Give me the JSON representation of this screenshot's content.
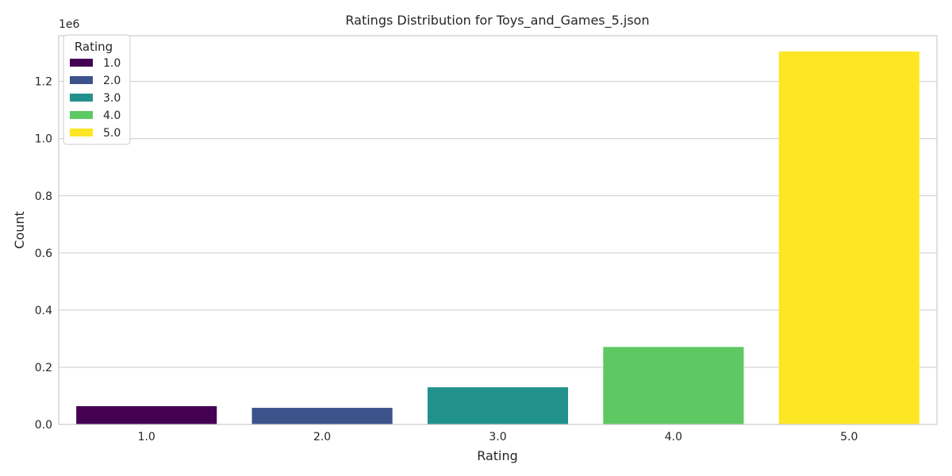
{
  "chart_data": {
    "type": "bar",
    "title": "Ratings Distribution for Toys_and_Games_5.json",
    "xlabel": "Rating",
    "ylabel": "Count",
    "offset_label": "1e6",
    "categories": [
      "1.0",
      "2.0",
      "3.0",
      "4.0",
      "5.0"
    ],
    "values": [
      64000,
      58000,
      130000,
      271000,
      1305000
    ],
    "colors": [
      "#440154",
      "#3b528b",
      "#21918c",
      "#5ec962",
      "#fde725"
    ],
    "ylim": [
      0,
      1360000
    ],
    "yticks": [
      0,
      200000,
      400000,
      600000,
      800000,
      1000000,
      1200000
    ],
    "ytick_labels": [
      "0.0",
      "0.2",
      "0.4",
      "0.6",
      "0.8",
      "1.0",
      "1.2"
    ],
    "grid": true,
    "legend": {
      "title": "Rating",
      "placement": "top-left",
      "entries": [
        "1.0",
        "2.0",
        "3.0",
        "4.0",
        "5.0"
      ]
    }
  }
}
